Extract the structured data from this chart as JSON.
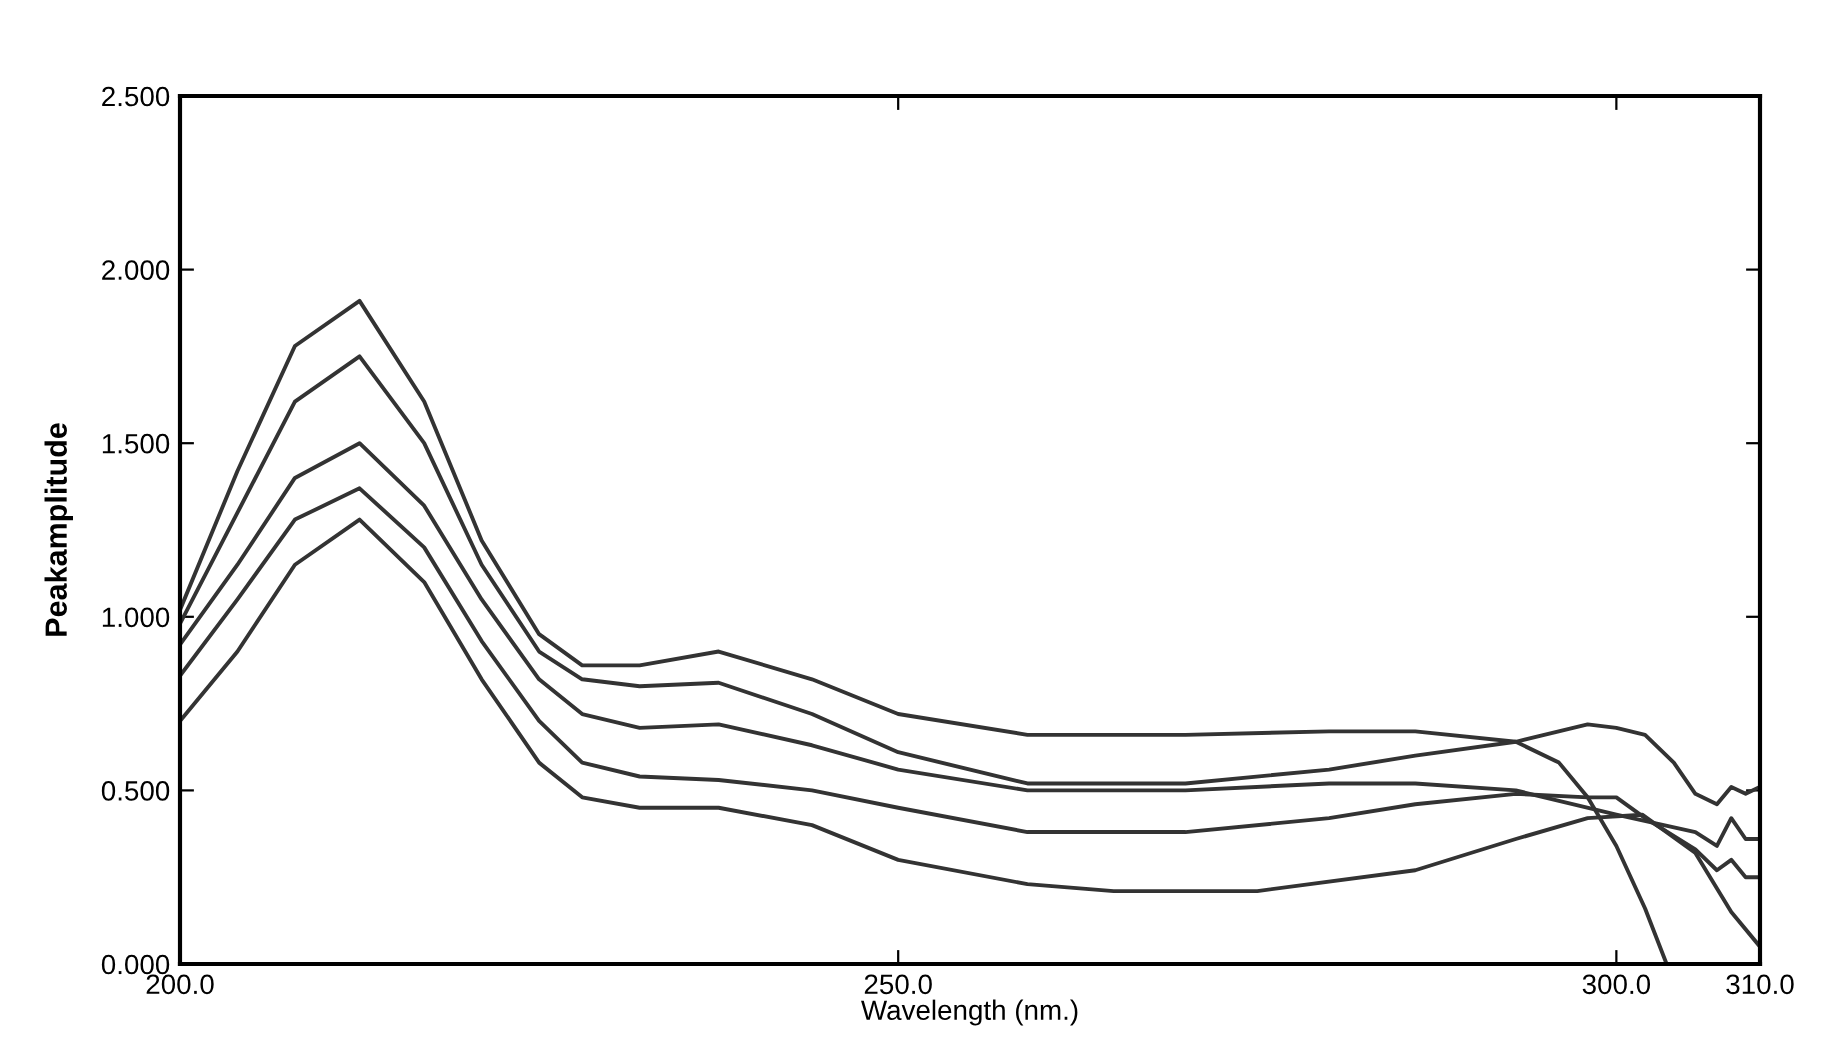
{
  "chart_data": {
    "type": "line",
    "xlabel": "Wavelength (nm.)",
    "ylabel": "Peakamplitude",
    "xlim": [
      200,
      310
    ],
    "xticks": [
      {
        "value": 200,
        "label": "200.0"
      },
      {
        "value": 250,
        "label": "250.0"
      },
      {
        "value": 300,
        "label": "300.0"
      },
      {
        "value": 310,
        "label": "310.0"
      }
    ],
    "ylim": [
      0,
      2.5
    ],
    "yticks": [
      {
        "value": 0,
        "label": "0.000"
      },
      {
        "value": 0.5,
        "label": "0.500"
      },
      {
        "value": 1,
        "label": "1.000"
      },
      {
        "value": 1.5,
        "label": "1.500"
      },
      {
        "value": 2,
        "label": "2.000"
      },
      {
        "value": 2.5,
        "label": "2.500"
      }
    ],
    "grid": false,
    "marker": "none",
    "line_style": "solid",
    "series": [
      {
        "color": "#333333",
        "x": [
          200,
          204,
          208,
          212.5,
          217,
          221,
          225,
          228,
          232,
          237.5,
          244,
          250,
          259,
          270,
          280,
          286,
          293,
          296,
          298,
          300,
          302,
          303.5
        ],
        "values": [
          1.02,
          1.42,
          1.78,
          1.91,
          1.62,
          1.22,
          0.95,
          0.86,
          0.86,
          0.9,
          0.82,
          0.72,
          0.66,
          0.66,
          0.67,
          0.67,
          0.64,
          0.58,
          0.48,
          0.34,
          0.16,
          0
        ]
      },
      {
        "color": "#333333",
        "x": [
          200,
          204,
          208,
          212.5,
          217,
          221,
          225,
          228,
          232,
          237.5,
          244,
          250,
          259,
          270,
          280,
          286,
          293,
          298,
          300,
          302,
          304,
          305.5,
          307,
          308,
          309,
          310
        ],
        "values": [
          0.98,
          1.3,
          1.62,
          1.75,
          1.5,
          1.15,
          0.9,
          0.82,
          0.8,
          0.81,
          0.72,
          0.61,
          0.52,
          0.52,
          0.56,
          0.6,
          0.64,
          0.69,
          0.68,
          0.66,
          0.58,
          0.49,
          0.46,
          0.51,
          0.49,
          0.51
        ]
      },
      {
        "color": "#333333",
        "x": [
          200,
          204,
          208,
          212.5,
          217,
          221,
          225,
          228,
          232,
          237.5,
          244,
          250,
          259,
          270,
          280,
          286,
          293,
          300,
          305.5,
          307,
          308,
          309,
          310
        ],
        "values": [
          0.92,
          1.15,
          1.4,
          1.5,
          1.32,
          1.05,
          0.82,
          0.72,
          0.68,
          0.69,
          0.63,
          0.56,
          0.5,
          0.5,
          0.52,
          0.52,
          0.5,
          0.43,
          0.38,
          0.34,
          0.42,
          0.36,
          0.36
        ]
      },
      {
        "color": "#333333",
        "x": [
          200,
          204,
          208,
          212.5,
          217,
          221,
          225,
          228,
          232,
          237.5,
          244,
          250,
          259,
          270,
          280,
          286,
          293,
          298,
          300,
          302,
          305.5,
          307,
          308,
          309,
          310
        ],
        "values": [
          0.83,
          1.05,
          1.28,
          1.37,
          1.2,
          0.93,
          0.7,
          0.58,
          0.54,
          0.53,
          0.5,
          0.45,
          0.38,
          0.38,
          0.42,
          0.46,
          0.49,
          0.48,
          0.48,
          0.42,
          0.33,
          0.27,
          0.3,
          0.25,
          0.25
        ]
      },
      {
        "color": "#333333",
        "x": [
          200,
          204,
          208,
          212.5,
          217,
          221,
          225,
          228,
          232,
          237.5,
          244,
          250,
          259,
          265,
          275,
          286,
          293,
          298,
          301.8,
          305.5,
          308,
          310
        ],
        "values": [
          0.7,
          0.9,
          1.15,
          1.28,
          1.1,
          0.82,
          0.58,
          0.48,
          0.45,
          0.45,
          0.4,
          0.3,
          0.23,
          0.21,
          0.21,
          0.27,
          0.36,
          0.42,
          0.43,
          0.32,
          0.15,
          0.05
        ]
      }
    ]
  }
}
